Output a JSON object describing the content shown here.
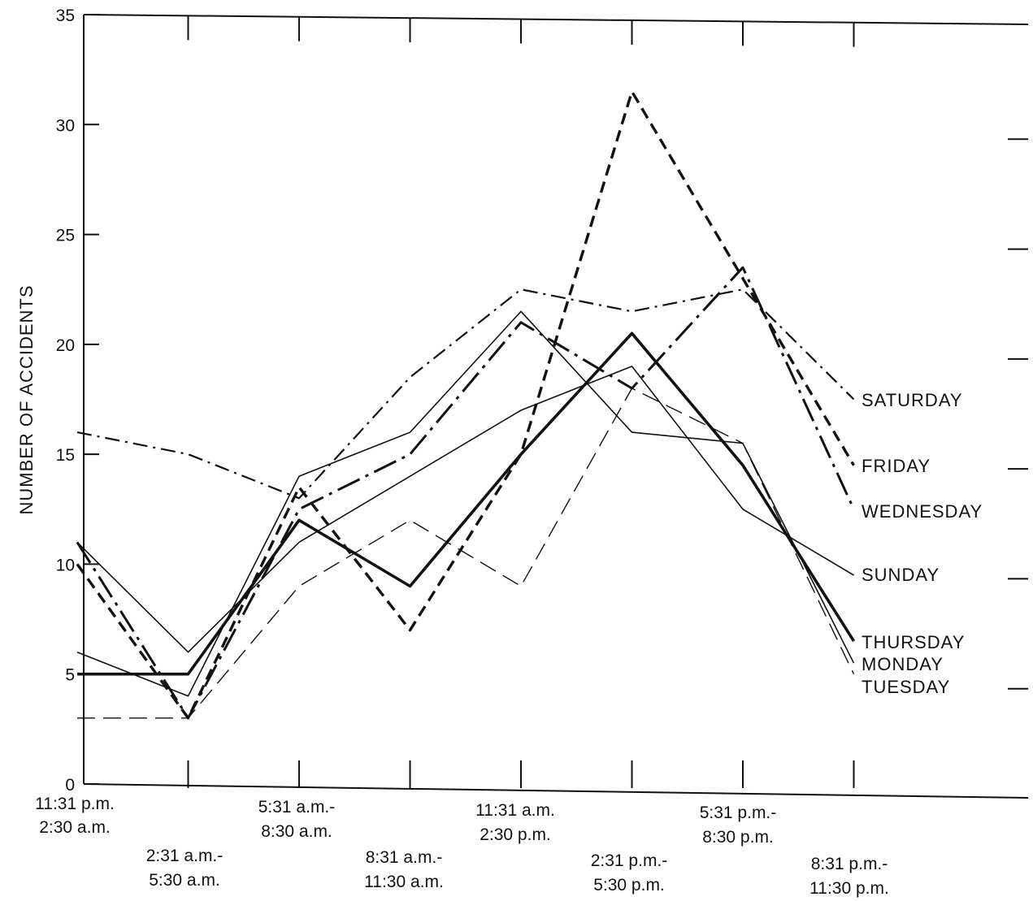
{
  "chart_data": {
    "type": "line",
    "title": "",
    "xlabel": "",
    "ylabel": "NUMBER OF ACCIDENTS",
    "ylim": [
      0,
      35
    ],
    "yticks": [
      0,
      5,
      10,
      15,
      20,
      25,
      30,
      35
    ],
    "grid": false,
    "categories": [
      [
        "11:31 p.m.",
        "2:30 a.m."
      ],
      [
        "2:31 a.m.-",
        "5:30 a.m."
      ],
      [
        "5:31 a.m.-",
        "8:30 a.m."
      ],
      [
        "8:31 a.m.-",
        "11:30 a.m."
      ],
      [
        "11:31 a.m.",
        "2:30 p.m."
      ],
      [
        "2:31 p.m.-",
        "5:30 p.m."
      ],
      [
        "5:31 p.m.-",
        "8:30 p.m."
      ],
      [
        "8:31 p.m.-",
        "11:30 p.m."
      ]
    ],
    "series": [
      {
        "name": "SATURDAY",
        "style": "dashdot",
        "values": [
          16,
          15,
          13,
          18.5,
          22.5,
          21.5,
          22.5,
          17.5
        ]
      },
      {
        "name": "FRIDAY",
        "style": "dashed-heavy",
        "values": [
          10,
          3,
          13.5,
          7,
          15,
          31.5,
          23,
          14.5
        ]
      },
      {
        "name": "WEDNESDAY",
        "style": "longdash-dot",
        "values": [
          11,
          3,
          12.5,
          15,
          21,
          18,
          23.5,
          12.5
        ]
      },
      {
        "name": "SUNDAY",
        "style": "thin-solid",
        "values": [
          11,
          6,
          11,
          14,
          17,
          19,
          12.5,
          9.5
        ]
      },
      {
        "name": "THURSDAY",
        "style": "heavy-solid",
        "values": [
          5,
          5,
          12,
          9,
          15,
          20.5,
          14.5,
          6.5
        ]
      },
      {
        "name": "MONDAY",
        "style": "thin-solid",
        "values": [
          6,
          4,
          14,
          16,
          21.5,
          16,
          15.5,
          5.5
        ]
      },
      {
        "name": "TUESDAY",
        "style": "thin-dashed",
        "values": [
          3,
          3,
          9,
          12,
          9,
          18,
          15.5,
          5
        ]
      }
    ]
  }
}
